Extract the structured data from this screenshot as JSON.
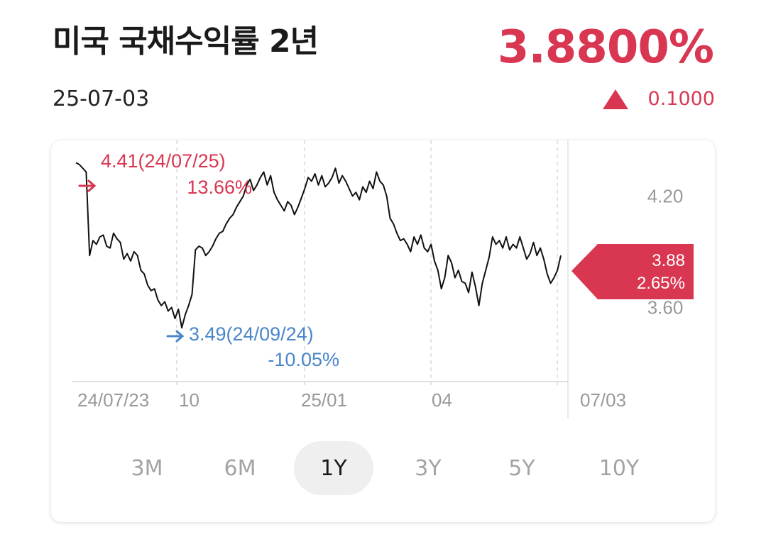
{
  "header": {
    "title": "미국 국채수익률 2년",
    "date": "25-07-03",
    "price": "3.8800%",
    "change": "0.1000",
    "up_color": "#d93651",
    "down_color": "#4a86c8"
  },
  "chart_data": {
    "type": "line",
    "x_tick_labels": [
      "24/07/23",
      "10",
      "25/01",
      "04",
      "07/03"
    ],
    "y_tick_labels": [
      "4.20",
      "3.60"
    ],
    "y_ticks": [
      4.2,
      3.6
    ],
    "y_range": [
      3.2,
      4.5
    ],
    "series": [
      {
        "values": [
          4.38,
          4.37,
          4.35,
          4.33,
          3.88,
          3.96,
          3.94,
          3.98,
          3.99,
          3.93,
          3.92,
          4.0,
          3.97,
          3.95,
          3.86,
          3.89,
          3.85,
          3.9,
          3.88,
          3.8,
          3.78,
          3.72,
          3.69,
          3.7,
          3.64,
          3.61,
          3.63,
          3.58,
          3.6,
          3.54,
          3.59,
          3.49,
          3.56,
          3.61,
          3.67,
          3.91,
          3.93,
          3.92,
          3.88,
          3.9,
          3.93,
          3.97,
          4.0,
          4.01,
          4.05,
          4.08,
          4.1,
          4.14,
          4.17,
          4.2,
          4.26,
          4.29,
          4.23,
          4.26,
          4.3,
          4.33,
          4.26,
          4.31,
          4.22,
          4.18,
          4.15,
          4.12,
          4.17,
          4.15,
          4.1,
          4.14,
          4.19,
          4.24,
          4.3,
          4.28,
          4.32,
          4.26,
          4.31,
          4.25,
          4.27,
          4.3,
          4.35,
          4.27,
          4.31,
          4.28,
          4.24,
          4.2,
          4.22,
          4.18,
          4.25,
          4.22,
          4.28,
          4.24,
          4.33,
          4.28,
          4.26,
          4.2,
          4.08,
          4.05,
          4.0,
          3.96,
          3.97,
          3.94,
          3.9,
          3.98,
          3.94,
          3.99,
          3.92,
          3.9,
          3.94,
          3.85,
          3.8,
          3.7,
          3.76,
          3.88,
          3.84,
          3.76,
          3.8,
          3.74,
          3.73,
          3.68,
          3.79,
          3.71,
          3.61,
          3.73,
          3.8,
          3.87,
          3.98,
          3.94,
          3.96,
          3.92,
          3.98,
          3.91,
          3.94,
          3.92,
          3.98,
          3.92,
          3.86,
          3.89,
          3.95,
          3.88,
          3.92,
          3.86,
          3.78,
          3.73,
          3.76,
          3.8,
          3.88
        ]
      }
    ],
    "current_label": {
      "value": "3.88",
      "change": "2.65%"
    },
    "high_annotation": {
      "text": "4.41(24/07/25)",
      "pct": "13.66%"
    },
    "low_annotation": {
      "text": "3.49(24/09/24)",
      "pct": "-10.05%"
    }
  },
  "periods": [
    {
      "label": "3M",
      "active": false
    },
    {
      "label": "6M",
      "active": false
    },
    {
      "label": "1Y",
      "active": true
    },
    {
      "label": "3Y",
      "active": false
    },
    {
      "label": "5Y",
      "active": false
    },
    {
      "label": "10Y",
      "active": false
    }
  ]
}
